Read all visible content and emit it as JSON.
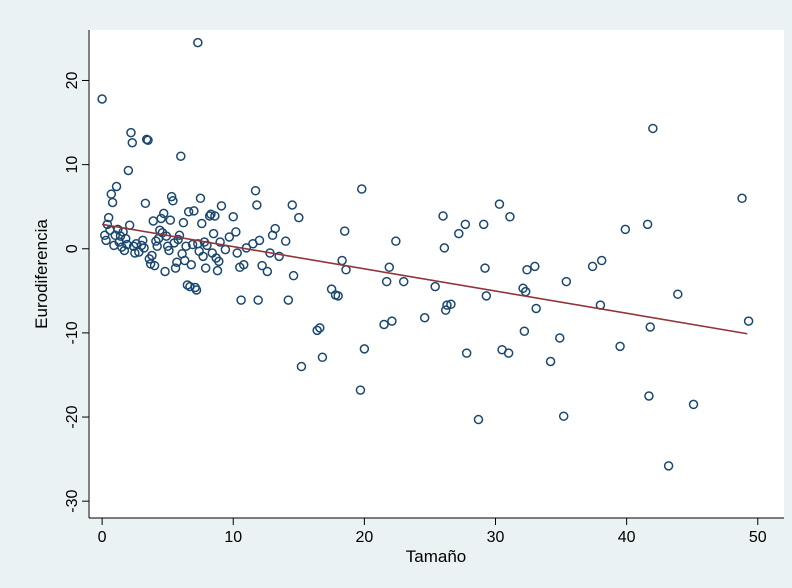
{
  "chart_data": {
    "type": "scatter",
    "xlabel": "Tamaño",
    "ylabel": "Eurodiferencia",
    "xlim": [
      -1,
      52
    ],
    "ylim": [
      -32,
      26
    ],
    "xticks": [
      {
        "value": 0,
        "label": "0"
      },
      {
        "value": 10,
        "label": "10"
      },
      {
        "value": 20,
        "label": "20"
      },
      {
        "value": 30,
        "label": "30"
      },
      {
        "value": 40,
        "label": "40"
      },
      {
        "value": 50,
        "label": "50"
      }
    ],
    "yticks": [
      {
        "value": 20,
        "label": "20"
      },
      {
        "value": 10,
        "label": "10"
      },
      {
        "value": 0,
        "label": "0"
      },
      {
        "value": -10,
        "label": "-10"
      },
      {
        "value": -20,
        "label": "-20"
      },
      {
        "value": -30,
        "label": "-30"
      }
    ],
    "grid": false,
    "colors": {
      "background": "#eaf2f3",
      "plot_background": "#ffffff",
      "marker": "#1a476f",
      "fit_line": "#90353b"
    },
    "fit_line": {
      "x": [
        0,
        49.2
      ],
      "y": [
        2.9,
        -10.1
      ]
    },
    "points": [
      [
        0,
        17.8
      ],
      [
        7.3,
        24.5
      ],
      [
        42,
        14.3
      ],
      [
        48.8,
        6
      ],
      [
        0.2,
        1.6
      ],
      [
        0.3,
        1
      ],
      [
        0.4,
        2.9
      ],
      [
        0.5,
        3.7
      ],
      [
        0.6,
        2.2
      ],
      [
        0.7,
        6.5
      ],
      [
        0.8,
        5.5
      ],
      [
        0.9,
        0.4
      ],
      [
        1,
        1.6
      ],
      [
        1.1,
        7.4
      ],
      [
        1.2,
        2.3
      ],
      [
        1.3,
        0.8
      ],
      [
        1.4,
        1.5
      ],
      [
        1.5,
        0.2
      ],
      [
        1.6,
        2
      ],
      [
        1.7,
        -0.2
      ],
      [
        1.8,
        1.2
      ],
      [
        1.9,
        0.5
      ],
      [
        2,
        9.3
      ],
      [
        2.1,
        2.8
      ],
      [
        2.2,
        13.8
      ],
      [
        2.3,
        12.6
      ],
      [
        2.4,
        0.3
      ],
      [
        2.5,
        -0.5
      ],
      [
        2.6,
        0.6
      ],
      [
        2.8,
        -0.4
      ],
      [
        3,
        0.4
      ],
      [
        3.1,
        1
      ],
      [
        3.2,
        0.1
      ],
      [
        3.3,
        5.4
      ],
      [
        3.4,
        13
      ],
      [
        3.5,
        12.9
      ],
      [
        3.6,
        -1.2
      ],
      [
        3.7,
        -1.8
      ],
      [
        3.8,
        -0.8
      ],
      [
        3.9,
        3.3
      ],
      [
        4,
        -2
      ],
      [
        4.1,
        0.9
      ],
      [
        4.2,
        0.3
      ],
      [
        4.3,
        1.2
      ],
      [
        4.4,
        2.2
      ],
      [
        4.5,
        3.6
      ],
      [
        4.6,
        1.9
      ],
      [
        4.7,
        4.2
      ],
      [
        4.8,
        -2.7
      ],
      [
        4.9,
        1.5
      ],
      [
        5,
        0.3
      ],
      [
        5.1,
        -0.2
      ],
      [
        5.2,
        3.4
      ],
      [
        5.3,
        6.2
      ],
      [
        5.4,
        5.7
      ],
      [
        5.5,
        0.7
      ],
      [
        5.6,
        -2.3
      ],
      [
        5.7,
        -1.6
      ],
      [
        5.8,
        1.1
      ],
      [
        5.9,
        1.6
      ],
      [
        6,
        11
      ],
      [
        6.1,
        -0.6
      ],
      [
        6.2,
        3.1
      ],
      [
        6.3,
        -1.4
      ],
      [
        6.4,
        0.3
      ],
      [
        6.5,
        -4.3
      ],
      [
        6.6,
        4.4
      ],
      [
        6.7,
        -4.5
      ],
      [
        6.8,
        -1.9
      ],
      [
        6.9,
        0.5
      ],
      [
        7,
        4.5
      ],
      [
        7.1,
        -4.6
      ],
      [
        7.2,
        -4.9
      ],
      [
        7.3,
        0.6
      ],
      [
        7.4,
        -0.3
      ],
      [
        7.5,
        6
      ],
      [
        7.6,
        3
      ],
      [
        7.7,
        -0.9
      ],
      [
        7.8,
        0.8
      ],
      [
        7.9,
        -2.3
      ],
      [
        8,
        0.4
      ],
      [
        8.2,
        3.9
      ],
      [
        8.3,
        4.1
      ],
      [
        8.4,
        -0.5
      ],
      [
        8.5,
        1.8
      ],
      [
        8.6,
        3.9
      ],
      [
        8.7,
        -1.1
      ],
      [
        8.8,
        -2.6
      ],
      [
        8.9,
        -1.5
      ],
      [
        9,
        0.8
      ],
      [
        9.1,
        5.1
      ],
      [
        9.4,
        -0.1
      ],
      [
        9.7,
        1.4
      ],
      [
        10,
        3.8
      ],
      [
        10.2,
        2
      ],
      [
        10.3,
        -0.5
      ],
      [
        10.5,
        -2.2
      ],
      [
        10.6,
        -6.1
      ],
      [
        10.8,
        -1.9
      ],
      [
        11,
        0.1
      ],
      [
        11.5,
        0.6
      ],
      [
        11.7,
        6.9
      ],
      [
        11.8,
        5.2
      ],
      [
        11.9,
        -6.1
      ],
      [
        12,
        1
      ],
      [
        12.2,
        -2
      ],
      [
        12.6,
        -2.7
      ],
      [
        12.8,
        -0.5
      ],
      [
        13,
        1.6
      ],
      [
        13.2,
        2.4
      ],
      [
        13.5,
        -0.9
      ],
      [
        14,
        0.9
      ],
      [
        14.2,
        -6.1
      ],
      [
        14.5,
        5.2
      ],
      [
        14.6,
        -3.2
      ],
      [
        15,
        3.7
      ],
      [
        15.2,
        -14
      ],
      [
        16.4,
        -9.7
      ],
      [
        16.6,
        -9.4
      ],
      [
        16.8,
        -12.9
      ],
      [
        17.5,
        -4.8
      ],
      [
        17.8,
        -5.5
      ],
      [
        18,
        -5.6
      ],
      [
        18.3,
        -1.4
      ],
      [
        18.5,
        2.1
      ],
      [
        18.6,
        -2.5
      ],
      [
        19.7,
        -16.8
      ],
      [
        19.8,
        7.1
      ],
      [
        20,
        -11.9
      ],
      [
        21.5,
        -9
      ],
      [
        21.7,
        -3.9
      ],
      [
        21.9,
        -2.2
      ],
      [
        22.1,
        -8.6
      ],
      [
        22.4,
        0.9
      ],
      [
        23,
        -3.9
      ],
      [
        24.6,
        -8.2
      ],
      [
        25.4,
        -4.5
      ],
      [
        26,
        3.9
      ],
      [
        26.1,
        0.1
      ],
      [
        26.2,
        -7.3
      ],
      [
        26.3,
        -6.7
      ],
      [
        26.6,
        -6.6
      ],
      [
        27.2,
        1.8
      ],
      [
        27.7,
        2.9
      ],
      [
        27.8,
        -12.4
      ],
      [
        28.7,
        -20.3
      ],
      [
        29.1,
        2.9
      ],
      [
        29.2,
        -2.3
      ],
      [
        29.3,
        -5.6
      ],
      [
        30.3,
        5.3
      ],
      [
        30.5,
        -12
      ],
      [
        31,
        -12.4
      ],
      [
        31.1,
        3.8
      ],
      [
        32.1,
        -4.7
      ],
      [
        32.2,
        -9.8
      ],
      [
        32.3,
        -5.1
      ],
      [
        32.4,
        -2.5
      ],
      [
        33,
        -2.1
      ],
      [
        33.1,
        -7.1
      ],
      [
        34.2,
        -13.4
      ],
      [
        34.9,
        -10.6
      ],
      [
        35.2,
        -19.9
      ],
      [
        35.4,
        -3.9
      ],
      [
        37.4,
        -2.1
      ],
      [
        38,
        -6.7
      ],
      [
        38.1,
        -1.4
      ],
      [
        39.5,
        -11.6
      ],
      [
        39.9,
        2.3
      ],
      [
        41.6,
        2.9
      ],
      [
        41.7,
        -17.5
      ],
      [
        41.8,
        -9.3
      ],
      [
        43.2,
        -25.8
      ],
      [
        43.9,
        -5.4
      ],
      [
        45.1,
        -18.5
      ],
      [
        49.3,
        -8.6
      ]
    ]
  }
}
